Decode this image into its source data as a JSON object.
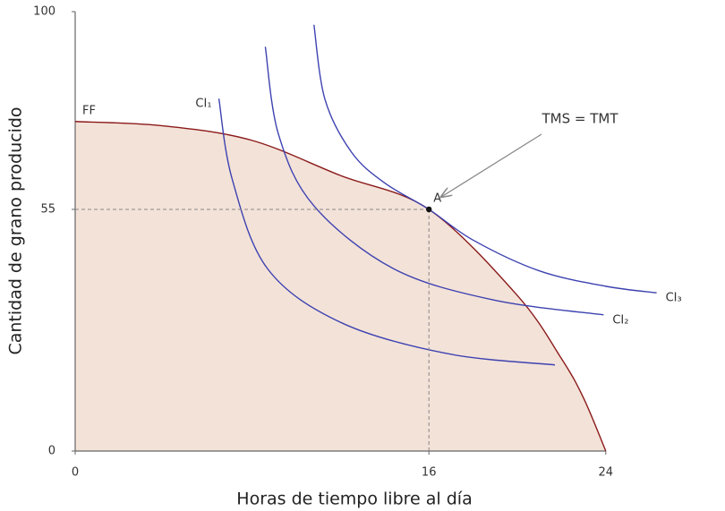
{
  "chart_data": {
    "type": "line",
    "x_label": "Horas de tiempo libre al día",
    "y_label": "Cantidad de grano producido",
    "xlim": [
      0,
      26.5
    ],
    "ylim": [
      0,
      100
    ],
    "xticks": [
      0,
      16,
      24
    ],
    "yticks": [
      0,
      55,
      100
    ],
    "grid": false,
    "series": [
      {
        "name": "FF",
        "color": "#8b1a1a",
        "fill": "#f3e2d8",
        "x": [
          0,
          4,
          8,
          12,
          16,
          20,
          22,
          23,
          24
        ],
        "values": [
          75,
          74,
          70.7,
          62.7,
          55,
          35.4,
          21,
          12,
          0
        ]
      },
      {
        "name": "CI₁",
        "color": "#3d42b0",
        "x": [
          6.5,
          7.1,
          8.7,
          12,
          16.8,
          21.7
        ],
        "values": [
          80.2,
          61.9,
          41.5,
          29.3,
          22.2,
          19.6
        ]
      },
      {
        "name": "CI₂",
        "color": "#3d42b0",
        "x": [
          8.6,
          9.2,
          10.8,
          14.4,
          18.9,
          23.9
        ],
        "values": [
          92,
          72,
          55.8,
          41.5,
          34.4,
          31
        ]
      },
      {
        "name": "CI₃",
        "color": "#3d42b0",
        "x": [
          10.8,
          11.3,
          12.5,
          14,
          16,
          18,
          21,
          24,
          26.3
        ],
        "values": [
          97,
          80,
          68,
          61,
          55,
          48,
          41,
          37.5,
          36
        ]
      }
    ],
    "points": [
      {
        "label": "A",
        "x": 16,
        "y": 55
      }
    ],
    "annotation": "TMS = TMT"
  }
}
